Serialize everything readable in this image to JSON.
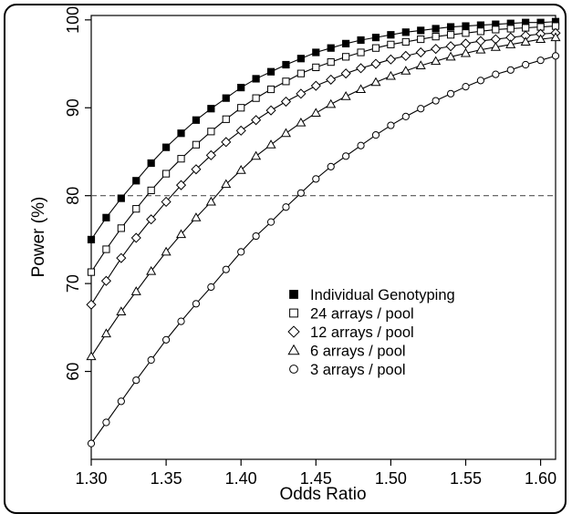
{
  "chart_data": {
    "type": "line",
    "xlabel": "Odds Ratio",
    "ylabel": "Power (%)",
    "xlim": [
      1.3,
      1.61
    ],
    "ylim": [
      50,
      100.5
    ],
    "x_ticks": [
      "1.30",
      "1.35",
      "1.40",
      "1.45",
      "1.50",
      "1.55",
      "1.60"
    ],
    "y_ticks": [
      "60",
      "70",
      "80",
      "90",
      "100"
    ],
    "reference_line": {
      "y": 80,
      "style": "dashed"
    },
    "legend_position": "center-right",
    "x": [
      1.3,
      1.31,
      1.32,
      1.33,
      1.34,
      1.35,
      1.36,
      1.37,
      1.38,
      1.39,
      1.4,
      1.41,
      1.42,
      1.43,
      1.44,
      1.45,
      1.46,
      1.47,
      1.48,
      1.49,
      1.5,
      1.51,
      1.52,
      1.53,
      1.54,
      1.55,
      1.56,
      1.57,
      1.58,
      1.59,
      1.6,
      1.61
    ],
    "series": [
      {
        "name": "Individual Genotyping",
        "marker": "filled-square",
        "values": [
          75.0,
          77.5,
          79.7,
          81.7,
          83.7,
          85.5,
          87.1,
          88.6,
          89.9,
          91.1,
          92.3,
          93.3,
          94.1,
          94.9,
          95.6,
          96.3,
          96.8,
          97.3,
          97.7,
          98.0,
          98.3,
          98.6,
          98.8,
          99.0,
          99.2,
          99.3,
          99.4,
          99.5,
          99.6,
          99.7,
          99.7,
          99.8
        ]
      },
      {
        "name": "24 arrays / pool",
        "marker": "open-square",
        "values": [
          71.3,
          73.9,
          76.3,
          78.5,
          80.6,
          82.5,
          84.2,
          85.8,
          87.3,
          88.7,
          90.0,
          91.1,
          92.1,
          93.0,
          93.9,
          94.6,
          95.2,
          95.8,
          96.3,
          96.8,
          97.2,
          97.5,
          97.8,
          98.1,
          98.3,
          98.5,
          98.7,
          98.9,
          99.0,
          99.1,
          99.2,
          99.3
        ]
      },
      {
        "name": "12 arrays / pool",
        "marker": "open-diamond",
        "values": [
          67.6,
          70.3,
          72.9,
          75.2,
          77.3,
          79.3,
          81.2,
          83.0,
          84.6,
          86.1,
          87.4,
          88.6,
          89.7,
          90.7,
          91.6,
          92.5,
          93.2,
          93.9,
          94.5,
          95.0,
          95.5,
          95.9,
          96.3,
          96.7,
          97.0,
          97.3,
          97.6,
          97.8,
          98.0,
          98.2,
          98.4,
          98.5
        ]
      },
      {
        "name": "6 arrays / pool",
        "marker": "open-triangle",
        "values": [
          61.7,
          64.3,
          66.8,
          69.1,
          71.4,
          73.6,
          75.6,
          77.5,
          79.3,
          81.3,
          82.9,
          84.5,
          85.8,
          87.1,
          88.3,
          89.4,
          90.4,
          91.3,
          92.1,
          92.9,
          93.6,
          94.2,
          94.8,
          95.3,
          95.8,
          96.2,
          96.6,
          96.9,
          97.2,
          97.5,
          97.8,
          98.0
        ]
      },
      {
        "name": "3 arrays / pool",
        "marker": "open-circle",
        "values": [
          51.8,
          54.2,
          56.6,
          59.0,
          61.3,
          63.6,
          65.7,
          67.7,
          69.6,
          71.6,
          73.6,
          75.4,
          77.0,
          78.7,
          80.3,
          81.9,
          83.3,
          84.5,
          85.7,
          86.9,
          88.0,
          89.0,
          89.9,
          90.8,
          91.6,
          92.4,
          93.1,
          93.8,
          94.3,
          94.9,
          95.4,
          95.9
        ]
      }
    ]
  }
}
